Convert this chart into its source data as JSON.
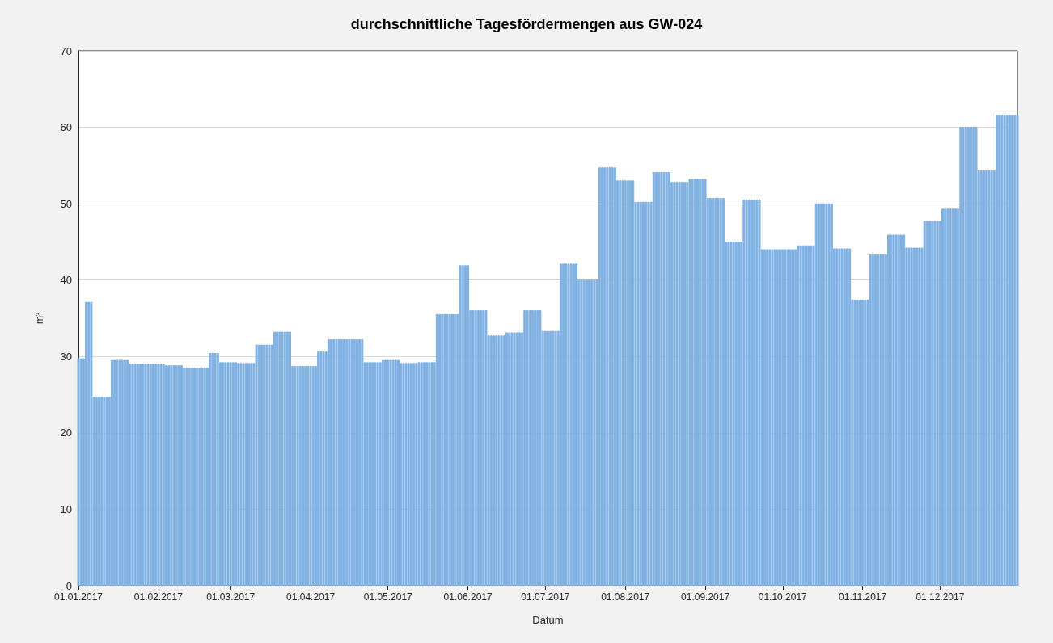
{
  "chart_data": {
    "type": "bar",
    "title": "durchschnittliche Tagesfördermengen aus GW-024",
    "xlabel": "Datum",
    "ylabel": "m³",
    "x": [
      "2017-01-01",
      "2017-01-02",
      "2017-01-03",
      "2017-01-04",
      "2017-01-05",
      "2017-01-06",
      "2017-01-07",
      "2017-01-08",
      "2017-01-09",
      "2017-01-10",
      "2017-01-11",
      "2017-01-12",
      "2017-01-13",
      "2017-01-14",
      "2017-01-15",
      "2017-01-16",
      "2017-01-17",
      "2017-01-18",
      "2017-01-19",
      "2017-01-20",
      "2017-01-21",
      "2017-01-22",
      "2017-01-23",
      "2017-01-24",
      "2017-01-25",
      "2017-01-26",
      "2017-01-27",
      "2017-01-28",
      "2017-01-29",
      "2017-01-30",
      "2017-01-31",
      "2017-02-01",
      "2017-02-02",
      "2017-02-03",
      "2017-02-04",
      "2017-02-05",
      "2017-02-06",
      "2017-02-07",
      "2017-02-08",
      "2017-02-09",
      "2017-02-10",
      "2017-02-11",
      "2017-02-12",
      "2017-02-13",
      "2017-02-14",
      "2017-02-15",
      "2017-02-16",
      "2017-02-17",
      "2017-02-18",
      "2017-02-19",
      "2017-02-20",
      "2017-02-21",
      "2017-02-22",
      "2017-02-23",
      "2017-02-24",
      "2017-02-25",
      "2017-02-26",
      "2017-02-27",
      "2017-02-28",
      "2017-03-01",
      "2017-03-02",
      "2017-03-03",
      "2017-03-04",
      "2017-03-05",
      "2017-03-06",
      "2017-03-07",
      "2017-03-08",
      "2017-03-09",
      "2017-03-10",
      "2017-03-11",
      "2017-03-12",
      "2017-03-13",
      "2017-03-14",
      "2017-03-15",
      "2017-03-16",
      "2017-03-17",
      "2017-03-18",
      "2017-03-19",
      "2017-03-20",
      "2017-03-21",
      "2017-03-22",
      "2017-03-23",
      "2017-03-24",
      "2017-03-25",
      "2017-03-26",
      "2017-03-27",
      "2017-03-28",
      "2017-03-29",
      "2017-03-30",
      "2017-03-31",
      "2017-04-01",
      "2017-04-02",
      "2017-04-03",
      "2017-04-04",
      "2017-04-05",
      "2017-04-06",
      "2017-04-07",
      "2017-04-08",
      "2017-04-09",
      "2017-04-10",
      "2017-04-11",
      "2017-04-12",
      "2017-04-13",
      "2017-04-14",
      "2017-04-15",
      "2017-04-16",
      "2017-04-17",
      "2017-04-18",
      "2017-04-19",
      "2017-04-20",
      "2017-04-21",
      "2017-04-22",
      "2017-04-23",
      "2017-04-24",
      "2017-04-25",
      "2017-04-26",
      "2017-04-27",
      "2017-04-28",
      "2017-04-29",
      "2017-04-30",
      "2017-05-01",
      "2017-05-02",
      "2017-05-03",
      "2017-05-04",
      "2017-05-05",
      "2017-05-06",
      "2017-05-07",
      "2017-05-08",
      "2017-05-09",
      "2017-05-10",
      "2017-05-11",
      "2017-05-12",
      "2017-05-13",
      "2017-05-14",
      "2017-05-15",
      "2017-05-16",
      "2017-05-17",
      "2017-05-18",
      "2017-05-19",
      "2017-05-20",
      "2017-05-21",
      "2017-05-22",
      "2017-05-23",
      "2017-05-24",
      "2017-05-25",
      "2017-05-26",
      "2017-05-27",
      "2017-05-28",
      "2017-05-29",
      "2017-05-30",
      "2017-05-31",
      "2017-06-01",
      "2017-06-02",
      "2017-06-03",
      "2017-06-04",
      "2017-06-05",
      "2017-06-06",
      "2017-06-07",
      "2017-06-08",
      "2017-06-09",
      "2017-06-10",
      "2017-06-11",
      "2017-06-12",
      "2017-06-13",
      "2017-06-14",
      "2017-06-15",
      "2017-06-16",
      "2017-06-17",
      "2017-06-18",
      "2017-06-19",
      "2017-06-20",
      "2017-06-21",
      "2017-06-22",
      "2017-06-23",
      "2017-06-24",
      "2017-06-25",
      "2017-06-26",
      "2017-06-27",
      "2017-06-28",
      "2017-06-29",
      "2017-06-30",
      "2017-07-01",
      "2017-07-02",
      "2017-07-03",
      "2017-07-04",
      "2017-07-05",
      "2017-07-06",
      "2017-07-07",
      "2017-07-08",
      "2017-07-09",
      "2017-07-10",
      "2017-07-11",
      "2017-07-12",
      "2017-07-13",
      "2017-07-14",
      "2017-07-15",
      "2017-07-16",
      "2017-07-17",
      "2017-07-18",
      "2017-07-19",
      "2017-07-20",
      "2017-07-21",
      "2017-07-22",
      "2017-07-23",
      "2017-07-24",
      "2017-07-25",
      "2017-07-26",
      "2017-07-27",
      "2017-07-28",
      "2017-07-29",
      "2017-07-30",
      "2017-07-31",
      "2017-08-01",
      "2017-08-02",
      "2017-08-03",
      "2017-08-04",
      "2017-08-05",
      "2017-08-06",
      "2017-08-07",
      "2017-08-08",
      "2017-08-09",
      "2017-08-10",
      "2017-08-11",
      "2017-08-12",
      "2017-08-13",
      "2017-08-14",
      "2017-08-15",
      "2017-08-16",
      "2017-08-17",
      "2017-08-18",
      "2017-08-19",
      "2017-08-20",
      "2017-08-21",
      "2017-08-22",
      "2017-08-23",
      "2017-08-24",
      "2017-08-25",
      "2017-08-26",
      "2017-08-27",
      "2017-08-28",
      "2017-08-29",
      "2017-08-30",
      "2017-08-31",
      "2017-09-01",
      "2017-09-02",
      "2017-09-03",
      "2017-09-04",
      "2017-09-05",
      "2017-09-06",
      "2017-09-07",
      "2017-09-08",
      "2017-09-09",
      "2017-09-10",
      "2017-09-11",
      "2017-09-12",
      "2017-09-13",
      "2017-09-14",
      "2017-09-15",
      "2017-09-16",
      "2017-09-17",
      "2017-09-18",
      "2017-09-19",
      "2017-09-20",
      "2017-09-21",
      "2017-09-22",
      "2017-09-23",
      "2017-09-24",
      "2017-09-25",
      "2017-09-26",
      "2017-09-27",
      "2017-09-28",
      "2017-09-29",
      "2017-09-30",
      "2017-10-01",
      "2017-10-02",
      "2017-10-03",
      "2017-10-04",
      "2017-10-05",
      "2017-10-06",
      "2017-10-07",
      "2017-10-08",
      "2017-10-09",
      "2017-10-10",
      "2017-10-11",
      "2017-10-12",
      "2017-10-13",
      "2017-10-14",
      "2017-10-15",
      "2017-10-16",
      "2017-10-17",
      "2017-10-18",
      "2017-10-19",
      "2017-10-20",
      "2017-10-21",
      "2017-10-22",
      "2017-10-23",
      "2017-10-24",
      "2017-10-25",
      "2017-10-26",
      "2017-10-27",
      "2017-10-28",
      "2017-10-29",
      "2017-10-30",
      "2017-10-31",
      "2017-11-01",
      "2017-11-02",
      "2017-11-03",
      "2017-11-04",
      "2017-11-05",
      "2017-11-06",
      "2017-11-07",
      "2017-11-08",
      "2017-11-09",
      "2017-11-10",
      "2017-11-11",
      "2017-11-12",
      "2017-11-13",
      "2017-11-14",
      "2017-11-15",
      "2017-11-16",
      "2017-11-17",
      "2017-11-18",
      "2017-11-19",
      "2017-11-20",
      "2017-11-21",
      "2017-11-22",
      "2017-11-23",
      "2017-11-24",
      "2017-11-25",
      "2017-11-26",
      "2017-11-27",
      "2017-11-28",
      "2017-11-29",
      "2017-11-30",
      "2017-12-01",
      "2017-12-02",
      "2017-12-03",
      "2017-12-04",
      "2017-12-05",
      "2017-12-06",
      "2017-12-07",
      "2017-12-08",
      "2017-12-09",
      "2017-12-10",
      "2017-12-11",
      "2017-12-12",
      "2017-12-13",
      "2017-12-14",
      "2017-12-15",
      "2017-12-16",
      "2017-12-17",
      "2017-12-18",
      "2017-12-19",
      "2017-12-20",
      "2017-12-21",
      "2017-12-22",
      "2017-12-23",
      "2017-12-24",
      "2017-12-25",
      "2017-12-26",
      "2017-12-27",
      "2017-12-28",
      "2017-12-29",
      "2017-12-30",
      "2017-12-31"
    ],
    "values": [
      29.7,
      29.7,
      29.7,
      37.1,
      37.1,
      37.1,
      24.7,
      24.7,
      24.7,
      24.7,
      24.7,
      24.7,
      24.7,
      29.5,
      29.5,
      29.5,
      29.5,
      29.5,
      29.5,
      29.5,
      29.0,
      29.0,
      29.0,
      29.0,
      29.0,
      29.0,
      29.0,
      29.0,
      29.0,
      29.0,
      29.0,
      29.0,
      29.0,
      29.0,
      28.8,
      28.8,
      28.8,
      28.8,
      28.8,
      28.8,
      28.8,
      28.5,
      28.5,
      28.5,
      28.5,
      28.5,
      28.5,
      28.5,
      28.5,
      28.5,
      28.5,
      30.4,
      30.4,
      30.4,
      30.4,
      29.2,
      29.2,
      29.2,
      29.2,
      29.2,
      29.2,
      29.2,
      29.1,
      29.1,
      29.1,
      29.1,
      29.1,
      29.1,
      29.1,
      31.5,
      31.5,
      31.5,
      31.5,
      31.5,
      31.5,
      31.5,
      33.2,
      33.2,
      33.2,
      33.2,
      33.2,
      33.2,
      33.2,
      28.7,
      28.7,
      28.7,
      28.7,
      28.7,
      28.7,
      28.7,
      28.7,
      28.7,
      28.7,
      30.6,
      30.6,
      30.6,
      30.6,
      32.2,
      32.2,
      32.2,
      32.2,
      32.2,
      32.2,
      32.2,
      32.2,
      32.2,
      32.2,
      32.2,
      32.2,
      32.2,
      32.2,
      29.2,
      29.2,
      29.2,
      29.2,
      29.2,
      29.2,
      29.2,
      29.5,
      29.5,
      29.5,
      29.5,
      29.5,
      29.5,
      29.5,
      29.1,
      29.1,
      29.1,
      29.1,
      29.1,
      29.1,
      29.1,
      29.2,
      29.2,
      29.2,
      29.2,
      29.2,
      29.2,
      29.2,
      35.5,
      35.5,
      35.5,
      35.5,
      35.5,
      35.5,
      35.5,
      35.5,
      35.5,
      41.9,
      41.9,
      41.9,
      41.9,
      36.0,
      36.0,
      36.0,
      36.0,
      36.0,
      36.0,
      36.0,
      32.7,
      32.7,
      32.7,
      32.7,
      32.7,
      32.7,
      32.7,
      33.1,
      33.1,
      33.1,
      33.1,
      33.1,
      33.1,
      33.1,
      36.0,
      36.0,
      36.0,
      36.0,
      36.0,
      36.0,
      36.0,
      33.3,
      33.3,
      33.3,
      33.3,
      33.3,
      33.3,
      33.3,
      42.1,
      42.1,
      42.1,
      42.1,
      42.1,
      42.1,
      42.1,
      40.0,
      40.0,
      40.0,
      40.0,
      40.0,
      40.0,
      40.0,
      40.0,
      54.7,
      54.7,
      54.7,
      54.7,
      54.7,
      54.7,
      54.7,
      53.0,
      53.0,
      53.0,
      53.0,
      53.0,
      53.0,
      53.0,
      50.2,
      50.2,
      50.2,
      50.2,
      50.2,
      50.2,
      50.2,
      54.1,
      54.1,
      54.1,
      54.1,
      54.1,
      54.1,
      54.1,
      52.8,
      52.8,
      52.8,
      52.8,
      52.8,
      52.8,
      52.8,
      53.2,
      53.2,
      53.2,
      53.2,
      53.2,
      53.2,
      53.2,
      50.7,
      50.7,
      50.7,
      50.7,
      50.7,
      50.7,
      50.7,
      45.0,
      45.0,
      45.0,
      45.0,
      45.0,
      45.0,
      45.0,
      50.5,
      50.5,
      50.5,
      50.5,
      50.5,
      50.5,
      50.5,
      44.0,
      44.0,
      44.0,
      44.0,
      44.0,
      44.0,
      44.0,
      44.0,
      44.0,
      44.0,
      44.0,
      44.0,
      44.0,
      44.0,
      44.5,
      44.5,
      44.5,
      44.5,
      44.5,
      44.5,
      44.5,
      50.0,
      50.0,
      50.0,
      50.0,
      50.0,
      50.0,
      50.0,
      44.1,
      44.1,
      44.1,
      44.1,
      44.1,
      44.1,
      44.1,
      37.4,
      37.4,
      37.4,
      37.4,
      37.4,
      37.4,
      37.4,
      43.3,
      43.3,
      43.3,
      43.3,
      43.3,
      43.3,
      43.3,
      45.9,
      45.9,
      45.9,
      45.9,
      45.9,
      45.9,
      45.9,
      44.2,
      44.2,
      44.2,
      44.2,
      44.2,
      44.2,
      44.2,
      47.7,
      47.7,
      47.7,
      47.7,
      47.7,
      47.7,
      47.7,
      49.3,
      49.3,
      49.3,
      49.3,
      49.3,
      49.3,
      49.3,
      60.0,
      60.0,
      60.0,
      60.0,
      60.0,
      60.0,
      60.0,
      54.3,
      54.3,
      54.3,
      54.3,
      54.3,
      54.3,
      54.3,
      61.6,
      61.6,
      61.6,
      61.6,
      61.6,
      61.6,
      61.6,
      61.6,
      61.6
    ],
    "color": "#7fb0e2",
    "xlim": [
      "2017-01-01",
      "2017-12-31"
    ],
    "xticks": [
      {
        "value": "2017-01-01",
        "label": "01.01.2017"
      },
      {
        "value": "2017-02-01",
        "label": "01.02.2017"
      },
      {
        "value": "2017-03-01",
        "label": "01.03.2017"
      },
      {
        "value": "2017-04-01",
        "label": "01.04.2017"
      },
      {
        "value": "2017-05-01",
        "label": "01.05.2017"
      },
      {
        "value": "2017-06-01",
        "label": "01.06.2017"
      },
      {
        "value": "2017-07-01",
        "label": "01.07.2017"
      },
      {
        "value": "2017-08-01",
        "label": "01.08.2017"
      },
      {
        "value": "2017-09-01",
        "label": "01.09.2017"
      },
      {
        "value": "2017-10-01",
        "label": "01.10.2017"
      },
      {
        "value": "2017-11-01",
        "label": "01.11.2017"
      },
      {
        "value": "2017-12-01",
        "label": "01.12.2017"
      }
    ],
    "ylim": [
      0,
      70
    ],
    "yticks": [
      0,
      10,
      20,
      30,
      40,
      50,
      60,
      70
    ],
    "grid": "y"
  }
}
